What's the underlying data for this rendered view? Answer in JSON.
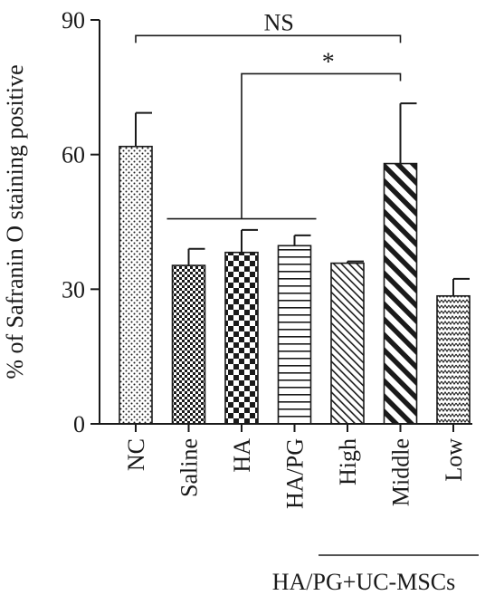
{
  "chart_data": {
    "type": "bar",
    "title": "",
    "xlabel": "",
    "ylabel": "% of Safranin O staining positive",
    "ylim": [
      0,
      90
    ],
    "yticks": [
      0,
      30,
      60,
      90
    ],
    "categories": [
      "NC",
      "Saline",
      "HA",
      "HA/PG",
      "High",
      "Middle",
      "Low"
    ],
    "values": [
      61.8,
      35.3,
      38.2,
      39.7,
      35.8,
      58.0,
      28.5
    ],
    "errors": [
      7.5,
      3.7,
      5.0,
      2.3,
      0.4,
      13.4,
      3.8
    ],
    "patterns": [
      "dots",
      "checker-small",
      "checker-large",
      "horizontal-lines",
      "diagonal-thin",
      "diagonal-thick",
      "zigzag"
    ],
    "group_label": {
      "text": "HA/PG+UC-MSCs",
      "categories": [
        "High",
        "Middle",
        "Low"
      ]
    },
    "annotations": [
      {
        "label": "NS",
        "from": "NC",
        "to": "Middle",
        "y": 86.5
      },
      {
        "label": "*",
        "from_group": [
          "Saline",
          "HA",
          "HA/PG"
        ],
        "to": "Middle",
        "y": 78
      }
    ],
    "colors": {
      "ink": "#1a1a1a",
      "background": "#ffffff"
    }
  }
}
